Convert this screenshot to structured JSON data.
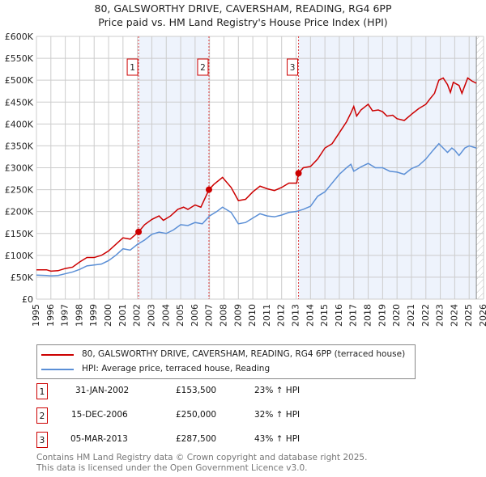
{
  "title": "80, GALSWORTHY DRIVE, CAVERSHAM, READING, RG4 6PP",
  "subtitle": "Price paid vs. HM Land Registry's House Price Index (HPI)",
  "colors": {
    "property": "#cc0000",
    "hpi": "#5b8fd6",
    "shade": "#eef3fc",
    "grid": "#cccccc"
  },
  "chart_data": {
    "type": "line",
    "xlim": [
      1995,
      2026
    ],
    "ylim": [
      0,
      600000
    ],
    "yticks": [
      "£0",
      "£50K",
      "£100K",
      "£150K",
      "£200K",
      "£250K",
      "£300K",
      "£350K",
      "£400K",
      "£450K",
      "£500K",
      "£550K",
      "£600K"
    ],
    "xticks": [
      "1995",
      "1996",
      "1997",
      "1998",
      "1999",
      "2000",
      "2001",
      "2002",
      "2003",
      "2004",
      "2005",
      "2006",
      "2007",
      "2008",
      "2009",
      "2010",
      "2011",
      "2012",
      "2013",
      "2014",
      "2015",
      "2016",
      "2017",
      "2018",
      "2019",
      "2020",
      "2021",
      "2022",
      "2023",
      "2024",
      "2025",
      "2026"
    ],
    "grid": true,
    "series": [
      {
        "name": "80, GALSWORTHY DRIVE, CAVERSHAM, READING, RG4 6PP (terraced house)",
        "color": "#cc0000",
        "points": [
          [
            1995,
            67
          ],
          [
            1995.7,
            67
          ],
          [
            1996,
            64
          ],
          [
            1996.5,
            65
          ],
          [
            1997,
            70
          ],
          [
            1997.5,
            73
          ],
          [
            1998,
            85
          ],
          [
            1998.5,
            95
          ],
          [
            1999,
            95
          ],
          [
            1999.5,
            100
          ],
          [
            2000,
            110
          ],
          [
            2000.5,
            125
          ],
          [
            2001,
            140
          ],
          [
            2001.5,
            137
          ],
          [
            2002.08,
            153.5
          ],
          [
            2002.5,
            170
          ],
          [
            2003,
            182
          ],
          [
            2003.5,
            190
          ],
          [
            2003.8,
            180
          ],
          [
            2004.3,
            190
          ],
          [
            2004.8,
            205
          ],
          [
            2005.2,
            210
          ],
          [
            2005.5,
            205
          ],
          [
            2006,
            215
          ],
          [
            2006.4,
            210
          ],
          [
            2006.96,
            250
          ],
          [
            2007.3,
            262
          ],
          [
            2007.9,
            278
          ],
          [
            2008.5,
            255
          ],
          [
            2009,
            225
          ],
          [
            2009.5,
            228
          ],
          [
            2010,
            245
          ],
          [
            2010.5,
            258
          ],
          [
            2011,
            252
          ],
          [
            2011.5,
            248
          ],
          [
            2012,
            255
          ],
          [
            2012.5,
            265
          ],
          [
            2013.05,
            265
          ],
          [
            2013.17,
            287.5
          ],
          [
            2013.5,
            300
          ],
          [
            2014,
            303
          ],
          [
            2014.5,
            320
          ],
          [
            2015,
            345
          ],
          [
            2015.5,
            355
          ],
          [
            2016,
            380
          ],
          [
            2016.5,
            405
          ],
          [
            2016.8,
            425
          ],
          [
            2017,
            440
          ],
          [
            2017.2,
            418
          ],
          [
            2017.5,
            432
          ],
          [
            2018,
            445
          ],
          [
            2018.3,
            430
          ],
          [
            2018.7,
            432
          ],
          [
            2019,
            428
          ],
          [
            2019.3,
            418
          ],
          [
            2019.7,
            420
          ],
          [
            2020,
            412
          ],
          [
            2020.5,
            408
          ],
          [
            2021,
            422
          ],
          [
            2021.5,
            435
          ],
          [
            2022,
            445
          ],
          [
            2022.3,
            458
          ],
          [
            2022.6,
            470
          ],
          [
            2022.9,
            500
          ],
          [
            2023.2,
            505
          ],
          [
            2023.5,
            490
          ],
          [
            2023.7,
            472
          ],
          [
            2023.9,
            495
          ],
          [
            2024.3,
            488
          ],
          [
            2024.5,
            470
          ],
          [
            2024.9,
            505
          ],
          [
            2025.2,
            498
          ],
          [
            2025.5,
            493
          ]
        ]
      },
      {
        "name": "HPI: Average price, terraced house, Reading",
        "color": "#5b8fd6",
        "points": [
          [
            1995,
            55
          ],
          [
            1995.7,
            54
          ],
          [
            1996,
            53
          ],
          [
            1996.5,
            54
          ],
          [
            1997,
            58
          ],
          [
            1997.5,
            62
          ],
          [
            1998,
            68
          ],
          [
            1998.5,
            76
          ],
          [
            1999,
            78
          ],
          [
            1999.5,
            80
          ],
          [
            2000,
            88
          ],
          [
            2000.5,
            100
          ],
          [
            2001,
            115
          ],
          [
            2001.5,
            112
          ],
          [
            2002,
            125
          ],
          [
            2002.5,
            135
          ],
          [
            2003,
            148
          ],
          [
            2003.5,
            153
          ],
          [
            2004,
            150
          ],
          [
            2004.5,
            158
          ],
          [
            2005,
            170
          ],
          [
            2005.5,
            168
          ],
          [
            2006,
            175
          ],
          [
            2006.5,
            172
          ],
          [
            2007,
            190
          ],
          [
            2007.5,
            200
          ],
          [
            2007.9,
            210
          ],
          [
            2008.5,
            198
          ],
          [
            2009,
            172
          ],
          [
            2009.5,
            175
          ],
          [
            2010,
            185
          ],
          [
            2010.5,
            195
          ],
          [
            2011,
            190
          ],
          [
            2011.5,
            188
          ],
          [
            2012,
            192
          ],
          [
            2012.5,
            198
          ],
          [
            2013,
            200
          ],
          [
            2013.5,
            205
          ],
          [
            2014,
            212
          ],
          [
            2014.5,
            235
          ],
          [
            2015,
            245
          ],
          [
            2015.5,
            265
          ],
          [
            2016,
            285
          ],
          [
            2016.5,
            300
          ],
          [
            2016.8,
            308
          ],
          [
            2017,
            292
          ],
          [
            2017.5,
            302
          ],
          [
            2018,
            310
          ],
          [
            2018.5,
            300
          ],
          [
            2019,
            300
          ],
          [
            2019.5,
            292
          ],
          [
            2020,
            290
          ],
          [
            2020.5,
            285
          ],
          [
            2021,
            298
          ],
          [
            2021.5,
            305
          ],
          [
            2022,
            320
          ],
          [
            2022.5,
            340
          ],
          [
            2022.9,
            355
          ],
          [
            2023.2,
            345
          ],
          [
            2023.5,
            335
          ],
          [
            2023.8,
            345
          ],
          [
            2024,
            340
          ],
          [
            2024.3,
            328
          ],
          [
            2024.7,
            345
          ],
          [
            2025,
            350
          ],
          [
            2025.5,
            345
          ]
        ]
      }
    ],
    "sales": [
      {
        "id": "1",
        "x": 2002.08,
        "price": 153.5
      },
      {
        "id": "2",
        "x": 2006.96,
        "price": 250
      },
      {
        "id": "3",
        "x": 2013.17,
        "price": 287.5
      }
    ],
    "shaded_ranges": [
      [
        2002.08,
        2006.96
      ],
      [
        2013.17,
        2025.5
      ]
    ],
    "hatched_from": 2025.5
  },
  "legend": {
    "property": "80, GALSWORTHY DRIVE, CAVERSHAM, READING, RG4 6PP (terraced house)",
    "hpi": "HPI: Average price, terraced house, Reading"
  },
  "transactions": [
    {
      "num": "1",
      "date": "31-JAN-2002",
      "price": "£153,500",
      "delta": "23% ↑ HPI"
    },
    {
      "num": "2",
      "date": "15-DEC-2006",
      "price": "£250,000",
      "delta": "32% ↑ HPI"
    },
    {
      "num": "3",
      "date": "05-MAR-2013",
      "price": "£287,500",
      "delta": "43% ↑ HPI"
    }
  ],
  "footer": {
    "line1": "Contains HM Land Registry data © Crown copyright and database right 2025.",
    "line2": "This data is licensed under the Open Government Licence v3.0."
  }
}
